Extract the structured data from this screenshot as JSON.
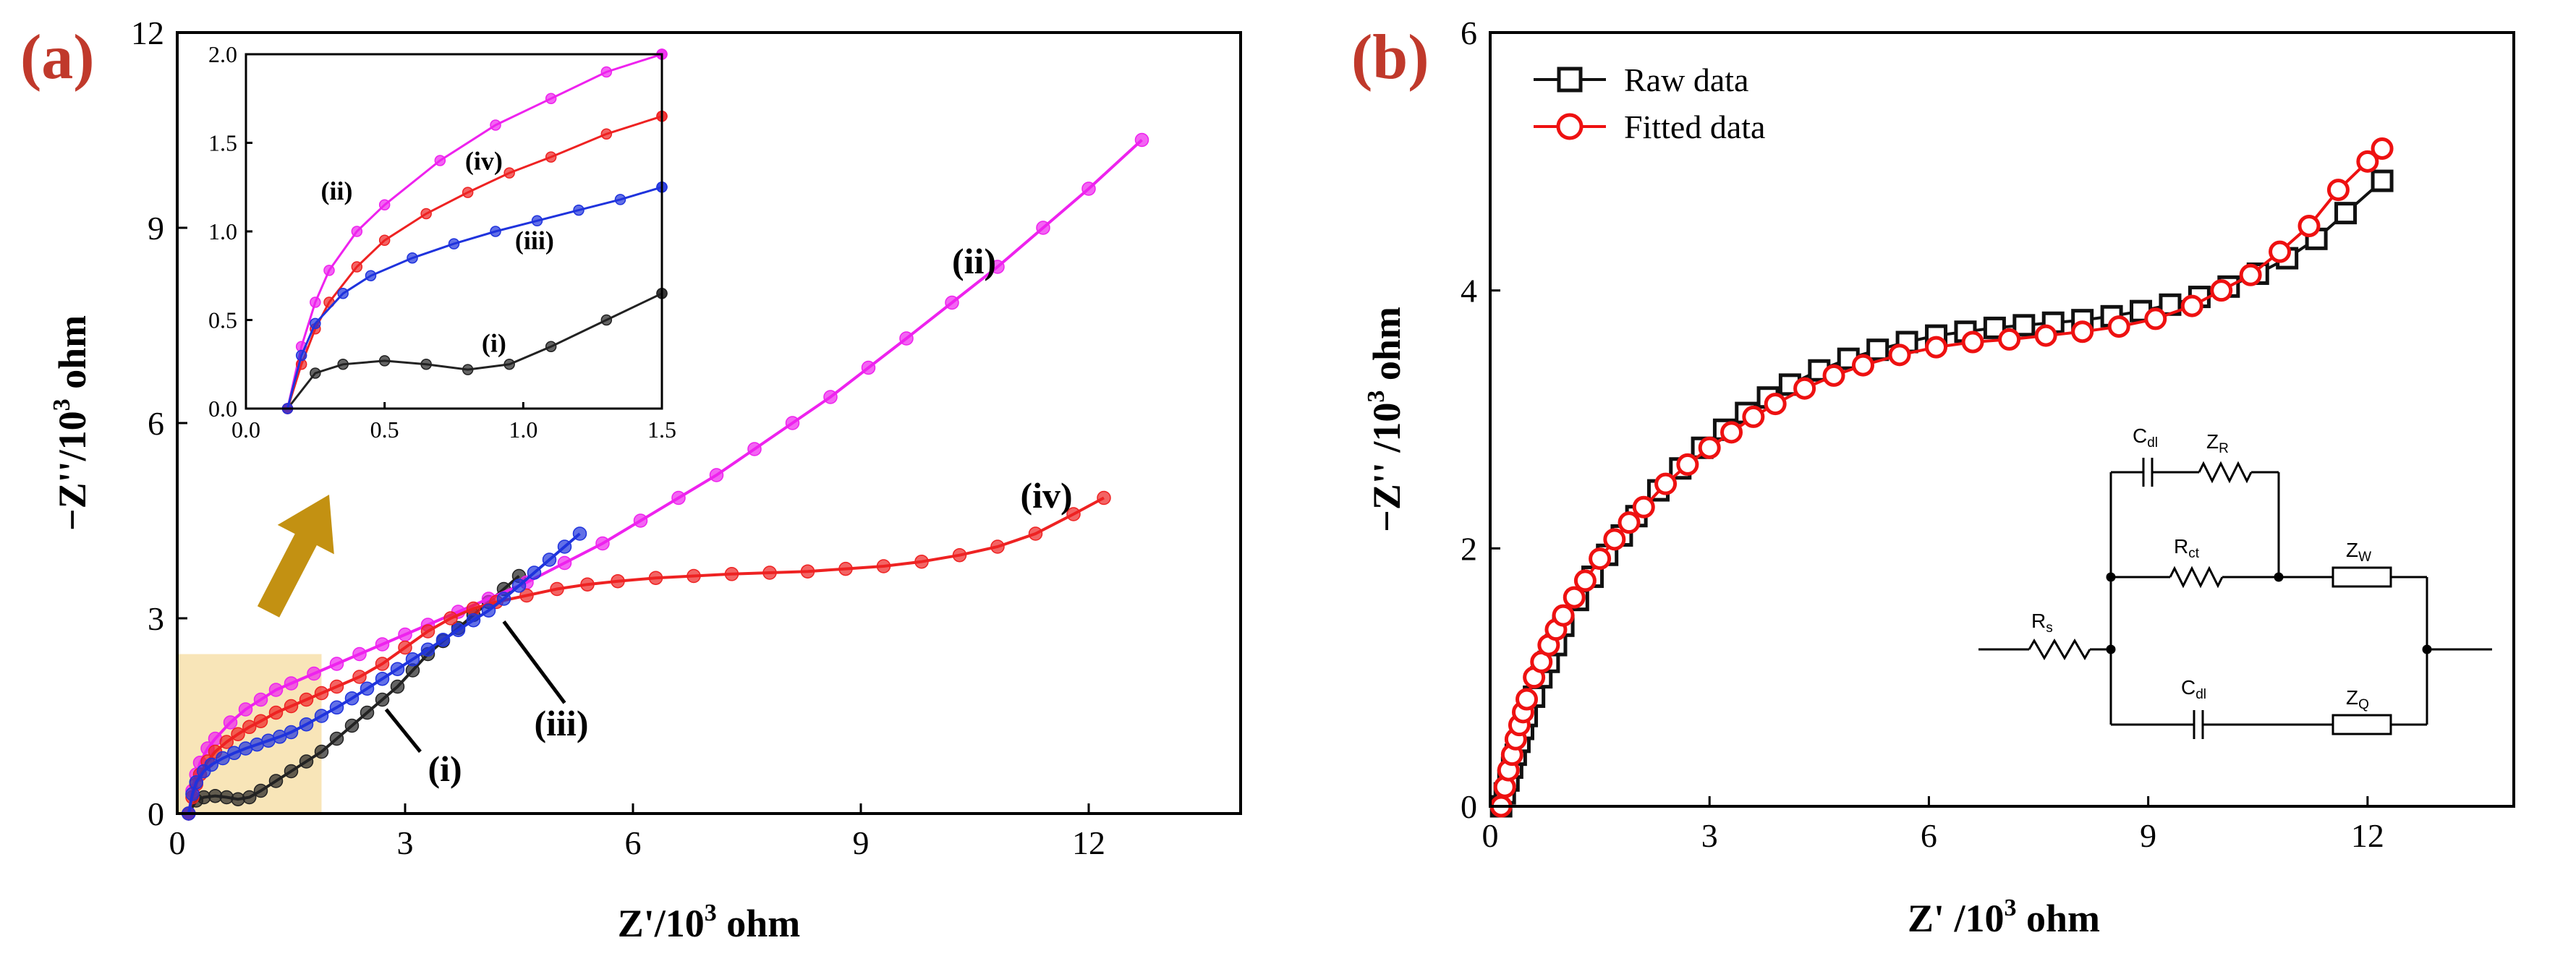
{
  "chart_data": [
    {
      "panel": "(a)",
      "type": "line",
      "xlabel": "Z'/10",
      "xlabel_sup": "3",
      "xlabel_unit": " ohm",
      "ylabel": "−Z''/10",
      "ylabel_sup": "3",
      "ylabel_unit": " ohm",
      "xlim": [
        0,
        14
      ],
      "ylim": [
        0,
        12
      ],
      "xticks": [
        "0",
        "3",
        "6",
        "9",
        "12"
      ],
      "yticks": [
        "0",
        "3",
        "6",
        "9",
        "12"
      ],
      "xtick_values": [
        0,
        3,
        6,
        9,
        12
      ],
      "ytick_values": [
        0,
        3,
        6,
        9,
        12
      ],
      "highlight_region": {
        "x": [
          0,
          1.9
        ],
        "y": [
          0,
          2.45
        ],
        "color": "#f5dca0"
      },
      "series": [
        {
          "name": "(i)",
          "color": "#222222",
          "label_text": "(i)",
          "x": [
            0.15,
            0.25,
            0.35,
            0.5,
            0.65,
            0.8,
            0.95,
            1.1,
            1.3,
            1.5,
            1.7,
            1.9,
            2.1,
            2.3,
            2.5,
            2.7,
            2.9,
            3.1,
            3.3,
            3.5,
            3.7,
            3.9,
            4.1,
            4.3,
            4.5
          ],
          "y": [
            0.0,
            0.2,
            0.25,
            0.27,
            0.25,
            0.22,
            0.25,
            0.35,
            0.5,
            0.65,
            0.8,
            0.95,
            1.15,
            1.35,
            1.55,
            1.75,
            1.95,
            2.2,
            2.45,
            2.65,
            2.85,
            3.05,
            3.25,
            3.45,
            3.65
          ]
        },
        {
          "name": "(ii)",
          "color": "#ee22ee",
          "label_text": "(ii)",
          "x": [
            0.15,
            0.2,
            0.25,
            0.3,
            0.4,
            0.5,
            0.7,
            0.9,
            1.1,
            1.3,
            1.5,
            1.8,
            2.1,
            2.4,
            2.7,
            3.0,
            3.3,
            3.7,
            4.1,
            4.6,
            5.1,
            5.6,
            6.1,
            6.6,
            7.1,
            7.6,
            8.1,
            8.6,
            9.1,
            9.6,
            10.2,
            10.8,
            11.4,
            12.0,
            12.7
          ],
          "y": [
            0.0,
            0.35,
            0.6,
            0.78,
            1.0,
            1.15,
            1.4,
            1.6,
            1.75,
            1.9,
            2.0,
            2.15,
            2.3,
            2.45,
            2.6,
            2.75,
            2.9,
            3.1,
            3.3,
            3.55,
            3.85,
            4.15,
            4.5,
            4.85,
            5.2,
            5.6,
            6.0,
            6.4,
            6.85,
            7.3,
            7.85,
            8.4,
            9.0,
            9.6,
            10.35
          ]
        },
        {
          "name": "(iii)",
          "color": "#1f33dd",
          "label_text": "(iii)",
          "x": [
            0.15,
            0.2,
            0.25,
            0.35,
            0.45,
            0.6,
            0.75,
            0.9,
            1.05,
            1.2,
            1.35,
            1.5,
            1.7,
            1.9,
            2.1,
            2.3,
            2.5,
            2.7,
            2.9,
            3.1,
            3.3,
            3.5,
            3.7,
            3.9,
            4.1,
            4.3,
            4.5,
            4.7,
            4.9,
            5.1,
            5.3
          ],
          "y": [
            0.0,
            0.3,
            0.48,
            0.65,
            0.75,
            0.85,
            0.93,
            1.0,
            1.06,
            1.12,
            1.18,
            1.25,
            1.37,
            1.5,
            1.63,
            1.77,
            1.92,
            2.07,
            2.22,
            2.37,
            2.52,
            2.67,
            2.82,
            2.97,
            3.12,
            3.3,
            3.5,
            3.7,
            3.9,
            4.1,
            4.3
          ]
        },
        {
          "name": "(iv)",
          "color": "#ee2222",
          "label_text": "(iv)",
          "x": [
            0.15,
            0.2,
            0.25,
            0.3,
            0.4,
            0.5,
            0.65,
            0.8,
            0.95,
            1.1,
            1.3,
            1.5,
            1.7,
            1.9,
            2.1,
            2.4,
            2.7,
            3.0,
            3.3,
            3.6,
            3.9,
            4.2,
            4.6,
            5.0,
            5.4,
            5.8,
            6.3,
            6.8,
            7.3,
            7.8,
            8.3,
            8.8,
            9.3,
            9.8,
            10.3,
            10.8,
            11.3,
            11.8,
            12.2
          ],
          "y": [
            0.0,
            0.25,
            0.45,
            0.6,
            0.8,
            0.95,
            1.1,
            1.22,
            1.33,
            1.42,
            1.55,
            1.65,
            1.75,
            1.85,
            1.95,
            2.1,
            2.3,
            2.55,
            2.8,
            3.0,
            3.15,
            3.25,
            3.35,
            3.45,
            3.52,
            3.57,
            3.62,
            3.65,
            3.68,
            3.7,
            3.72,
            3.76,
            3.8,
            3.87,
            3.97,
            4.1,
            4.3,
            4.6,
            4.85
          ]
        }
      ],
      "annotations": [
        {
          "text": "(ii)",
          "at": [
            10.2,
            8.3
          ]
        },
        {
          "text": "(iv)",
          "at": [
            11.1,
            4.7
          ]
        },
        {
          "text": "(iii)",
          "at": [
            4.7,
            1.2
          ]
        },
        {
          "text": "(i)",
          "at": [
            3.3,
            0.5
          ]
        }
      ],
      "arrow": {
        "from": [
          1.2,
          3.1
        ],
        "to": [
          2.0,
          4.9
        ],
        "color": "#c39112"
      },
      "inset": {
        "xlim": [
          0,
          1.5
        ],
        "ylim": [
          0,
          2.0
        ],
        "xticks": [
          "0.0",
          "0.5",
          "1.0",
          "1.5"
        ],
        "yticks": [
          "0.0",
          "0.5",
          "1.0",
          "1.5",
          "2.0"
        ],
        "xtick_values": [
          0,
          0.5,
          1.0,
          1.5
        ],
        "ytick_values": [
          0,
          0.5,
          1.0,
          1.5,
          2.0
        ],
        "annotations": [
          {
            "text": "(ii)",
            "at": [
              0.27,
              1.18
            ]
          },
          {
            "text": "(iv)",
            "at": [
              0.79,
              1.35
            ]
          },
          {
            "text": "(iii)",
            "at": [
              0.97,
              0.9
            ]
          },
          {
            "text": "(i)",
            "at": [
              0.85,
              0.32
            ]
          }
        ]
      }
    },
    {
      "panel": "(b)",
      "type": "line",
      "xlabel": "Z' /10",
      "xlabel_sup": "3",
      "xlabel_unit": " ohm",
      "ylabel": "−Z'' /10",
      "ylabel_sup": "3",
      "ylabel_unit": " ohm",
      "xlim": [
        0,
        14
      ],
      "ylim": [
        0,
        6
      ],
      "xticks": [
        "0",
        "3",
        "6",
        "9",
        "12"
      ],
      "yticks": [
        "0",
        "2",
        "4",
        "6"
      ],
      "xtick_values": [
        0,
        3,
        6,
        9,
        12
      ],
      "ytick_values": [
        0,
        2,
        4,
        6
      ],
      "legend_position": "top-left",
      "series": [
        {
          "name": "Raw data",
          "color": "#111111",
          "marker": "square",
          "x": [
            0.15,
            0.2,
            0.25,
            0.3,
            0.35,
            0.4,
            0.45,
            0.5,
            0.6,
            0.7,
            0.8,
            0.9,
            1.0,
            1.2,
            1.4,
            1.6,
            1.8,
            2.0,
            2.3,
            2.6,
            2.9,
            3.2,
            3.5,
            3.8,
            4.1,
            4.5,
            4.9,
            5.3,
            5.7,
            6.1,
            6.5,
            6.9,
            7.3,
            7.7,
            8.1,
            8.5,
            8.9,
            9.3,
            9.7,
            10.1,
            10.5,
            10.9,
            11.3,
            11.7,
            12.2
          ],
          "y": [
            0.0,
            0.1,
            0.2,
            0.3,
            0.4,
            0.5,
            0.6,
            0.7,
            0.85,
            1.0,
            1.12,
            1.25,
            1.4,
            1.6,
            1.78,
            1.95,
            2.1,
            2.25,
            2.45,
            2.62,
            2.78,
            2.92,
            3.05,
            3.17,
            3.27,
            3.38,
            3.47,
            3.54,
            3.6,
            3.65,
            3.68,
            3.71,
            3.73,
            3.75,
            3.77,
            3.8,
            3.84,
            3.89,
            3.95,
            4.03,
            4.13,
            4.25,
            4.4,
            4.6,
            4.85
          ]
        },
        {
          "name": "Fitted data",
          "color": "#ee1111",
          "marker": "circle",
          "x": [
            0.15,
            0.2,
            0.25,
            0.3,
            0.35,
            0.4,
            0.45,
            0.5,
            0.6,
            0.7,
            0.8,
            0.9,
            1.0,
            1.15,
            1.3,
            1.5,
            1.7,
            1.9,
            2.1,
            2.4,
            2.7,
            3.0,
            3.3,
            3.6,
            3.9,
            4.3,
            4.7,
            5.1,
            5.6,
            6.1,
            6.6,
            7.1,
            7.6,
            8.1,
            8.6,
            9.1,
            9.6,
            10.0,
            10.4,
            10.8,
            11.2,
            11.6,
            12.0,
            12.2
          ],
          "y": [
            0.0,
            0.15,
            0.28,
            0.4,
            0.52,
            0.63,
            0.73,
            0.83,
            1.0,
            1.12,
            1.25,
            1.37,
            1.48,
            1.62,
            1.75,
            1.92,
            2.07,
            2.2,
            2.32,
            2.5,
            2.65,
            2.78,
            2.9,
            3.02,
            3.12,
            3.24,
            3.34,
            3.42,
            3.5,
            3.56,
            3.6,
            3.62,
            3.65,
            3.68,
            3.72,
            3.78,
            3.88,
            4.0,
            4.12,
            4.3,
            4.5,
            4.78,
            5.0,
            5.1
          ]
        }
      ],
      "circuit": {
        "labels": {
          "cdl": "C",
          "cdl_sub": "dl",
          "zr": "Z",
          "zr_sub": "R",
          "rct": "R",
          "rct_sub": "ct",
          "zw": "Z",
          "zw_sub": "W",
          "rs": "R",
          "rs_sub": "s",
          "cdl2": "C",
          "cdl2_sub": "dl",
          "zq": "Z",
          "zq_sub": "Q"
        }
      }
    }
  ]
}
